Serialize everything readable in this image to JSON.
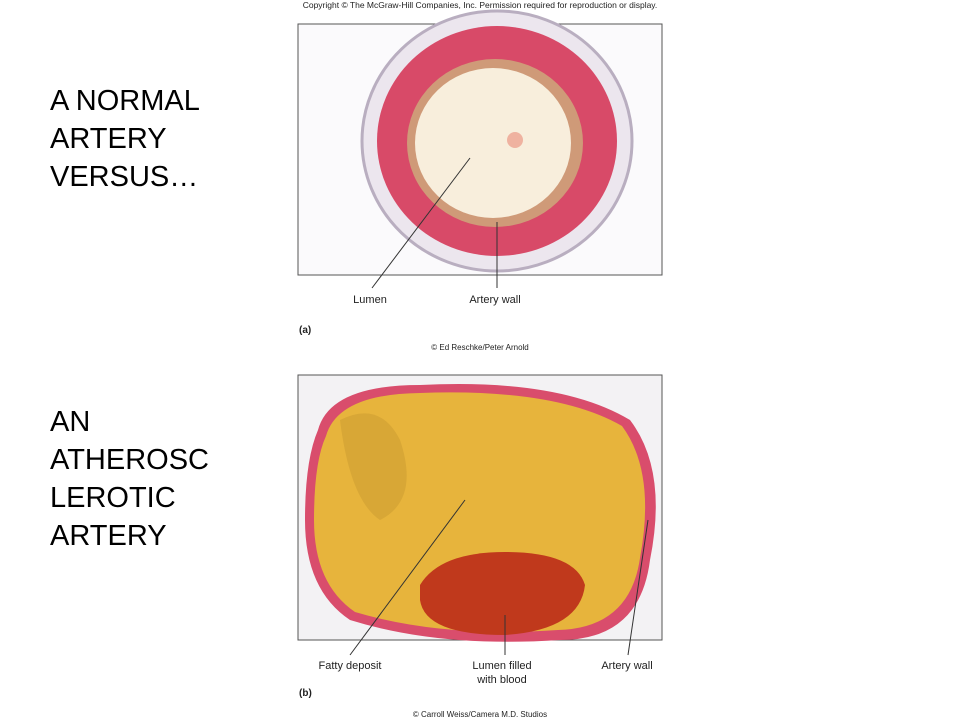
{
  "copyright": "Copyright © The McGraw-Hill Companies, Inc. Permission required for reproduction or display.",
  "heading_a": [
    "A NORMAL",
    "ARTERY",
    "VERSUS…"
  ],
  "heading_b": [
    "AN",
    "ATHEROSC",
    "LEROTIC",
    "ARTERY"
  ],
  "figure_a": {
    "labels": [
      "Lumen",
      "Artery wall"
    ],
    "panel": "(a)",
    "credit": "© Ed Reschke/Peter Arnold"
  },
  "figure_b": {
    "labels": [
      "Fatty deposit",
      "Lumen filled",
      "with blood",
      "Artery wall"
    ],
    "panel": "(b)",
    "credit": "© Carroll Weiss/Camera M.D. Studios"
  }
}
